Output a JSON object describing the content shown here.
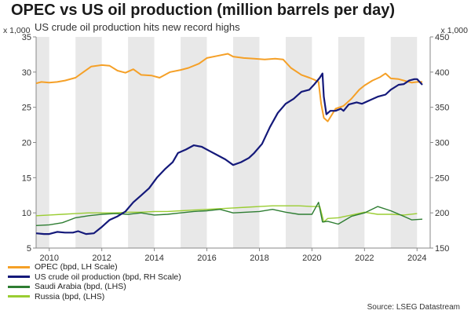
{
  "title": "OPEC vs US oil production (million barrels per day)",
  "subtitle": "US crude oil production hits new record highs",
  "source": "Source: LSEG Datastream",
  "chart_data": {
    "type": "line",
    "left_axis": {
      "unit": "x 1,000",
      "ylim": [
        5,
        35
      ],
      "ticks": [
        5,
        10,
        15,
        20,
        25,
        30,
        35
      ]
    },
    "right_axis": {
      "unit": "x 1,000",
      "ylim": [
        150,
        450
      ],
      "ticks": [
        150,
        200,
        250,
        300,
        350,
        400,
        450
      ]
    },
    "x_axis": {
      "xlim": [
        2009.5,
        2024.5
      ],
      "ticks": [
        2010,
        2012,
        2014,
        2016,
        2018,
        2020,
        2022,
        2024
      ]
    },
    "shaded_years": [
      [
        2009.5,
        2010
      ],
      [
        2011,
        2012
      ],
      [
        2013,
        2014
      ],
      [
        2015,
        2016
      ],
      [
        2017,
        2018
      ],
      [
        2019,
        2020
      ],
      [
        2021,
        2022
      ],
      [
        2023,
        2024
      ]
    ],
    "series": [
      {
        "name": "OPEC (bpd, LH Scale)",
        "axis": "left",
        "color": "#f5a027",
        "x": [
          2009.5,
          2009.7,
          2010.0,
          2010.3,
          2010.6,
          2011.0,
          2011.3,
          2011.6,
          2012.0,
          2012.3,
          2012.6,
          2012.9,
          2013.2,
          2013.5,
          2013.9,
          2014.2,
          2014.6,
          2015.0,
          2015.3,
          2015.7,
          2016.0,
          2016.4,
          2016.8,
          2017.0,
          2017.4,
          2017.8,
          2018.2,
          2018.6,
          2018.9,
          2019.2,
          2019.6,
          2019.9,
          2020.1,
          2020.25,
          2020.35,
          2020.45,
          2020.6,
          2020.9,
          2021.2,
          2021.5,
          2021.8,
          2022.0,
          2022.3,
          2022.6,
          2022.8,
          2023.0,
          2023.3,
          2023.5,
          2023.8,
          2024.0,
          2024.2
        ],
        "values": [
          28.4,
          28.6,
          28.5,
          28.6,
          28.8,
          29.2,
          30.0,
          30.8,
          31.0,
          30.9,
          30.2,
          29.9,
          30.4,
          29.6,
          29.5,
          29.2,
          30.0,
          30.3,
          30.6,
          31.2,
          32.0,
          32.3,
          32.6,
          32.2,
          32.0,
          31.9,
          31.8,
          31.9,
          31.8,
          30.6,
          29.6,
          29.2,
          28.9,
          28.6,
          25.5,
          23.5,
          23.0,
          24.8,
          25.2,
          26.2,
          27.5,
          28.1,
          28.8,
          29.3,
          29.8,
          29.1,
          29.0,
          28.8,
          28.5,
          28.6,
          28.6
        ]
      },
      {
        "name": "US crude oil production (bpd, RH Scale)",
        "axis": "right",
        "color": "#14197a",
        "x": [
          2009.5,
          2009.8,
          2010.0,
          2010.3,
          2010.6,
          2010.9,
          2011.1,
          2011.4,
          2011.7,
          2012.0,
          2012.3,
          2012.6,
          2012.9,
          2013.2,
          2013.5,
          2013.8,
          2014.1,
          2014.4,
          2014.7,
          2014.9,
          2015.2,
          2015.5,
          2015.8,
          2016.1,
          2016.4,
          2016.7,
          2017.0,
          2017.3,
          2017.6,
          2017.8,
          2018.1,
          2018.4,
          2018.7,
          2019.0,
          2019.3,
          2019.6,
          2019.9,
          2020.1,
          2020.3,
          2020.4,
          2020.45,
          2020.55,
          2020.7,
          2020.9,
          2021.1,
          2021.2,
          2021.4,
          2021.7,
          2021.9,
          2022.2,
          2022.5,
          2022.8,
          2023.0,
          2023.3,
          2023.5,
          2023.7,
          2023.9,
          2024.0,
          2024.2
        ],
        "values": [
          171,
          170,
          170,
          173,
          172,
          172,
          174,
          170,
          171,
          180,
          190,
          195,
          202,
          215,
          225,
          235,
          250,
          262,
          272,
          285,
          290,
          296,
          294,
          288,
          282,
          276,
          268,
          272,
          278,
          285,
          298,
          322,
          342,
          355,
          362,
          372,
          375,
          383,
          392,
          398,
          365,
          340,
          345,
          345,
          348,
          345,
          354,
          357,
          355,
          360,
          365,
          368,
          375,
          382,
          383,
          388,
          390,
          390,
          382
        ]
      },
      {
        "name": "Saudi Arabia (bpd, (LHS)",
        "axis": "left",
        "color": "#2e7d32",
        "x": [
          2009.5,
          2010.0,
          2010.5,
          2011.0,
          2011.5,
          2012.0,
          2012.5,
          2013.0,
          2013.5,
          2014.0,
          2014.5,
          2015.0,
          2015.5,
          2016.0,
          2016.5,
          2017.0,
          2017.5,
          2018.0,
          2018.5,
          2019.0,
          2019.5,
          2020.0,
          2020.25,
          2020.4,
          2020.6,
          2021.0,
          2021.5,
          2022.0,
          2022.5,
          2023.0,
          2023.5,
          2023.8,
          2024.2
        ],
        "values": [
          8.2,
          8.3,
          8.6,
          9.3,
          9.6,
          9.8,
          9.9,
          9.8,
          10.0,
          9.7,
          9.8,
          10.0,
          10.2,
          10.3,
          10.5,
          10.0,
          10.1,
          10.2,
          10.5,
          10.1,
          9.8,
          9.8,
          11.5,
          8.7,
          8.8,
          8.4,
          9.5,
          10.0,
          10.9,
          10.3,
          9.5,
          9.0,
          9.1
        ]
      },
      {
        "name": "Russia (bpd, (LHS)",
        "axis": "left",
        "color": "#9acd32",
        "x": [
          2009.5,
          2010.0,
          2010.5,
          2011.0,
          2011.5,
          2012.0,
          2012.5,
          2013.0,
          2013.5,
          2014.0,
          2014.5,
          2015.0,
          2015.5,
          2016.0,
          2016.5,
          2017.0,
          2017.5,
          2018.0,
          2018.5,
          2019.0,
          2019.5,
          2020.0,
          2020.3,
          2020.45,
          2020.6,
          2021.0,
          2021.5,
          2022.0,
          2022.5,
          2023.0,
          2023.5,
          2024.0
        ],
        "values": [
          9.6,
          9.7,
          9.8,
          9.9,
          10.0,
          10.0,
          10.0,
          10.1,
          10.1,
          10.2,
          10.2,
          10.3,
          10.4,
          10.5,
          10.6,
          10.7,
          10.8,
          10.9,
          11.0,
          11.0,
          11.0,
          10.9,
          10.9,
          8.7,
          9.2,
          9.3,
          9.7,
          10.1,
          9.8,
          9.8,
          9.7,
          9.9
        ]
      }
    ]
  }
}
